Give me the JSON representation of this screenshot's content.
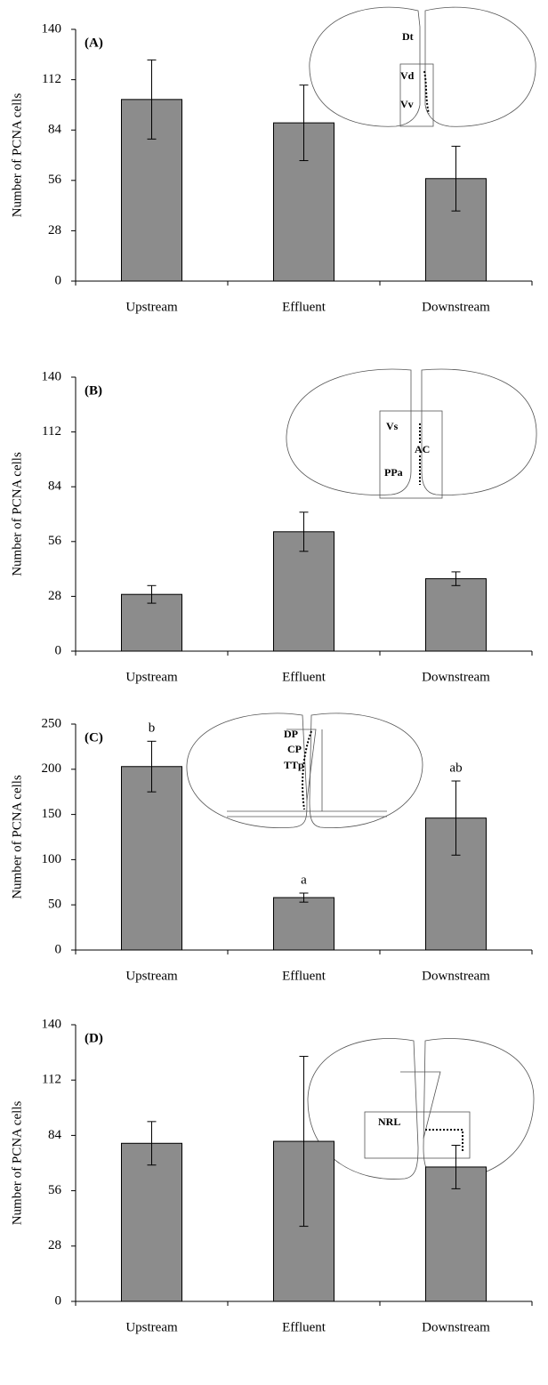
{
  "chart_data": [
    {
      "type": "bar",
      "panel_label": "(A)",
      "ylabel": "Number of PCNA cells",
      "categories": [
        "Upstream",
        "Effluent",
        "Downstream"
      ],
      "values": [
        101,
        88,
        57
      ],
      "errors": [
        22,
        21,
        18
      ],
      "color": "#8c8c8c",
      "ylim": [
        0,
        140
      ],
      "yticks": [
        0,
        28,
        56,
        84,
        112,
        140
      ],
      "annotations": [
        "Dt",
        "Vd",
        "Vv"
      ]
    },
    {
      "type": "bar",
      "panel_label": "(B)",
      "ylabel": "Number of PCNA cells",
      "categories": [
        "Upstream",
        "Effluent",
        "Downstream"
      ],
      "values": [
        29,
        61,
        37
      ],
      "errors": [
        4.5,
        10,
        3.5
      ],
      "color": "#8c8c8c",
      "ylim": [
        0,
        140
      ],
      "yticks": [
        0,
        28,
        56,
        84,
        112,
        140
      ],
      "annotations": [
        "Vs",
        "AC",
        "PPa"
      ]
    },
    {
      "type": "bar",
      "panel_label": "(C)",
      "ylabel": "Number of PCNA cells",
      "categories": [
        "Upstream",
        "Effluent",
        "Downstream"
      ],
      "values": [
        203,
        58,
        146
      ],
      "errors": [
        28,
        5,
        41
      ],
      "significance_labels": [
        "b",
        "a",
        "ab"
      ],
      "color": "#8c8c8c",
      "ylim": [
        0,
        250
      ],
      "yticks": [
        0,
        50,
        100,
        150,
        200,
        250
      ],
      "annotations": [
        "DP",
        "CP",
        "TTp"
      ]
    },
    {
      "type": "bar",
      "panel_label": "(D)",
      "ylabel": "Number of PCNA cells",
      "categories": [
        "Upstream",
        "Effluent",
        "Downstream"
      ],
      "values": [
        80,
        81,
        68
      ],
      "errors": [
        11,
        43,
        11
      ],
      "color": "#8c8c8c",
      "ylim": [
        0,
        140
      ],
      "yticks": [
        0,
        28,
        56,
        84,
        112,
        140
      ],
      "annotations": [
        "NRL"
      ]
    }
  ]
}
